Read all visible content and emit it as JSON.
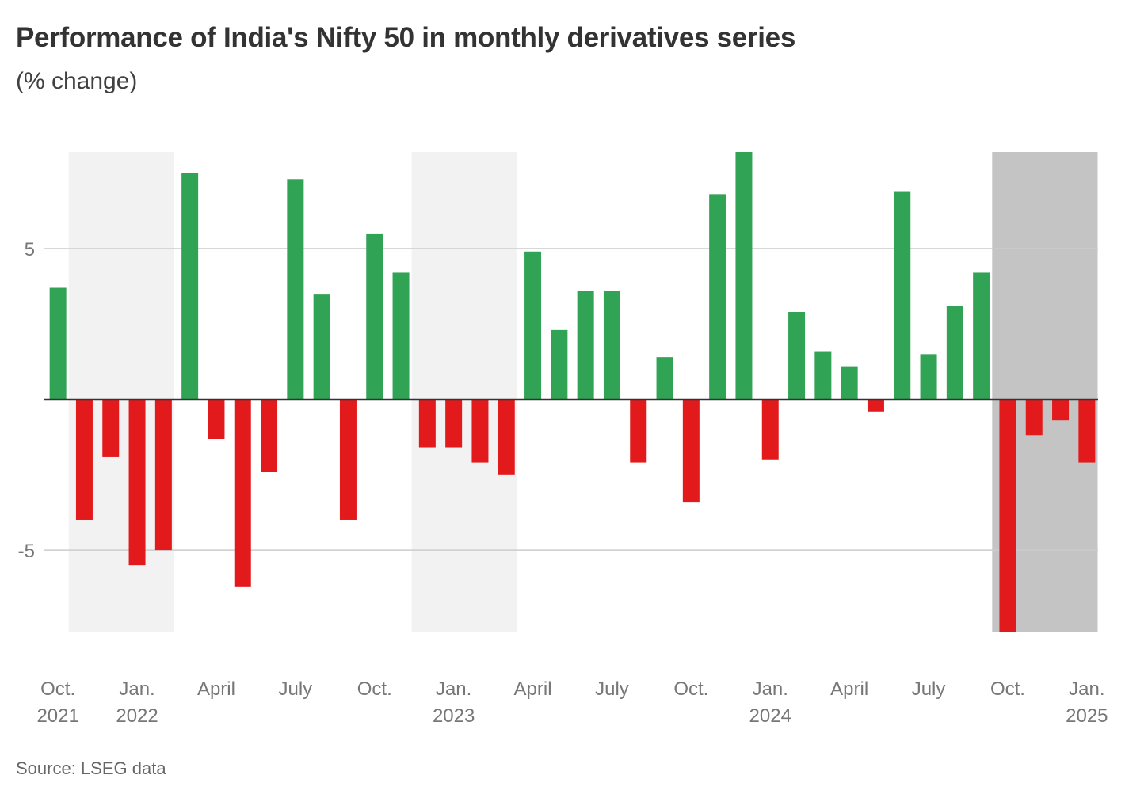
{
  "title": "Performance of India's Nifty 50 in monthly derivatives series",
  "subtitle": "(% change)",
  "source": "Source: LSEG data",
  "colors": {
    "positive": "#31a354",
    "negative": "#e31a1c",
    "shade_light": "#f2f2f2",
    "shade_dark": "#c4c4c4",
    "grid": "#cccccc",
    "axis": "#333333"
  },
  "chart_data": {
    "type": "bar",
    "title": "Performance of India's Nifty 50 in monthly derivatives series",
    "ylabel": "% change",
    "ylim": [
      -7.7,
      8.2
    ],
    "yticks": [
      {
        "value": 5,
        "label": "5"
      },
      {
        "value": -5,
        "label": "-5"
      }
    ],
    "categories": [
      "Oct 2021",
      "Nov 2021",
      "Dec 2021",
      "Jan 2022",
      "Feb 2022",
      "Mar 2022",
      "Apr 2022",
      "May 2022",
      "Jun 2022",
      "Jul 2022",
      "Aug 2022",
      "Sep 2022",
      "Oct 2022",
      "Nov 2022",
      "Dec 2022",
      "Jan 2023",
      "Feb 2023",
      "Mar 2023",
      "Apr 2023",
      "May 2023",
      "Jun 2023",
      "Jul 2023",
      "Aug 2023",
      "Sep 2023",
      "Oct 2023",
      "Nov 2023",
      "Dec 2023",
      "Jan 2024",
      "Feb 2024",
      "Mar 2024",
      "Apr 2024",
      "May 2024",
      "Jun 2024",
      "Jul 2024",
      "Aug 2024",
      "Sep 2024",
      "Oct 2024",
      "Nov 2024",
      "Dec 2024",
      "Jan 2025"
    ],
    "values": [
      3.7,
      -4.0,
      -1.9,
      -5.5,
      -5.0,
      7.5,
      -1.3,
      -6.2,
      -2.4,
      7.3,
      3.5,
      -4.0,
      5.5,
      4.2,
      -1.6,
      -1.6,
      -2.1,
      -2.5,
      4.9,
      2.3,
      3.6,
      3.6,
      -2.1,
      1.4,
      -3.4,
      6.8,
      8.2,
      -2.0,
      2.9,
      1.6,
      1.1,
      -0.4,
      6.9,
      1.5,
      3.1,
      4.2,
      -7.7,
      -1.2,
      -0.7,
      -2.1
    ],
    "shaded_ranges": [
      {
        "from": 1,
        "to": 4,
        "style": "light"
      },
      {
        "from": 14,
        "to": 17,
        "style": "light"
      },
      {
        "from": 36,
        "to": 39,
        "style": "dark"
      }
    ],
    "xtick_labels": [
      {
        "index": 0,
        "line1": "Oct.",
        "line2": "2021"
      },
      {
        "index": 3,
        "line1": "Jan.",
        "line2": "2022"
      },
      {
        "index": 6,
        "line1": "April",
        "line2": ""
      },
      {
        "index": 9,
        "line1": "July",
        "line2": ""
      },
      {
        "index": 12,
        "line1": "Oct.",
        "line2": ""
      },
      {
        "index": 15,
        "line1": "Jan.",
        "line2": "2023"
      },
      {
        "index": 18,
        "line1": "April",
        "line2": ""
      },
      {
        "index": 21,
        "line1": "July",
        "line2": ""
      },
      {
        "index": 24,
        "line1": "Oct.",
        "line2": ""
      },
      {
        "index": 27,
        "line1": "Jan.",
        "line2": "2024"
      },
      {
        "index": 30,
        "line1": "April",
        "line2": ""
      },
      {
        "index": 33,
        "line1": "July",
        "line2": ""
      },
      {
        "index": 36,
        "line1": "Oct.",
        "line2": ""
      },
      {
        "index": 39,
        "line1": "Jan.",
        "line2": "2025"
      }
    ]
  }
}
